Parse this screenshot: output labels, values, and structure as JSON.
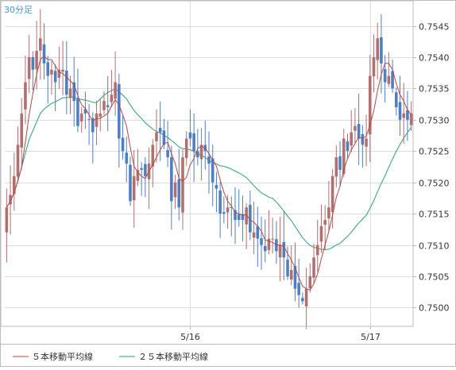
{
  "chart_data": {
    "type": "candlestick",
    "timeframe_label": "30分足",
    "ylim": [
      0.7497,
      0.7549
    ],
    "y_ticks": [
      "0.7500",
      "0.7505",
      "0.7510",
      "0.7515",
      "0.7520",
      "0.7525",
      "0.7530",
      "0.7535",
      "0.7540",
      "0.7545"
    ],
    "x_ticks": [
      {
        "label": "5/16",
        "index": 49
      },
      {
        "label": "5/17",
        "index": 97
      }
    ],
    "candle_count": 109,
    "colors": {
      "up": "#b07070",
      "down": "#4f7fbf",
      "ma5": "#b04a4a",
      "ma25": "#2e9e6e",
      "grid": "#dddddd",
      "frame": "#bbbbbb",
      "text": "#333333",
      "timeframe": "#3aa0d8"
    },
    "closes": [
      0.7516,
      0.7518,
      0.7521,
      0.7526,
      0.7531,
      0.7536,
      0.754,
      0.7538,
      0.7541,
      0.7543,
      0.7539,
      0.7537,
      0.7538,
      0.7536,
      0.7538,
      0.7538,
      0.7534,
      0.7535,
      0.7533,
      0.7529,
      0.7531,
      0.7531,
      0.753,
      0.7528,
      0.7531,
      0.7531,
      0.7533,
      0.7532,
      0.7534,
      0.7536,
      0.7527,
      0.7525,
      0.7523,
      0.7517,
      0.7521,
      0.7522,
      0.7522,
      0.7521,
      0.7523,
      0.7526,
      0.7528,
      0.7528,
      0.7526,
      0.7524,
      0.7517,
      0.752,
      0.7516,
      0.7524,
      0.7527,
      0.7527,
      0.7525,
      0.7524,
      0.7526,
      0.7525,
      0.7523,
      0.752,
      0.7519,
      0.7515,
      0.7515,
      0.7516,
      0.7516,
      0.7514,
      0.7514,
      0.7514,
      0.7516,
      0.7512,
      0.7512,
      0.7511,
      0.751,
      0.7509,
      0.7511,
      0.7511,
      0.7509,
      0.751,
      0.7508,
      0.7505,
      0.7506,
      0.7503,
      0.7502,
      0.7501,
      0.7503,
      0.7505,
      0.7508,
      0.751,
      0.7513,
      0.7514,
      0.7516,
      0.7521,
      0.7524,
      0.7522,
      0.7527,
      0.7525,
      0.7528,
      0.7529,
      0.7527,
      0.7526,
      0.7527,
      0.7537,
      0.754,
      0.7543,
      0.7539,
      0.7536,
      0.7537,
      0.7535,
      0.7532,
      0.753,
      0.7531,
      0.753,
      0.7531
    ]
  },
  "legend": [
    {
      "label": "５本移動平均線",
      "color": "#b04a4a"
    },
    {
      "label": "２５本移動平均線",
      "color": "#2e9e6e"
    }
  ]
}
